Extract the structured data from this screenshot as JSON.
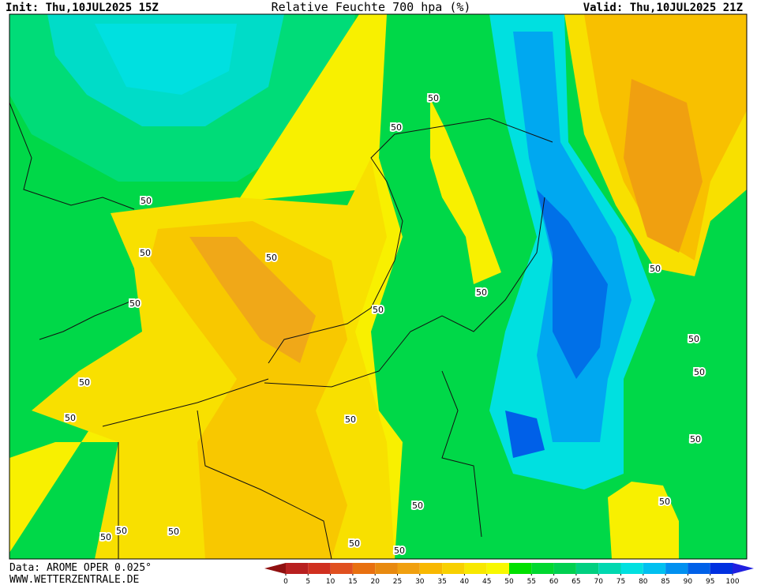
{
  "header": {
    "init": "Init: Thu,10JUL2025 15Z",
    "title": "Relative Feuchte 700 hpa (%)",
    "valid": "Valid: Thu,10JUL2025 21Z"
  },
  "footer": {
    "data_source": "Data: AROME OPER 0.025°",
    "url": "WWW.WETTERZENTRALE.DE"
  },
  "legend": {
    "ticks": [
      0,
      5,
      10,
      15,
      20,
      25,
      30,
      35,
      40,
      45,
      50,
      55,
      60,
      65,
      70,
      75,
      80,
      85,
      90,
      95,
      100
    ],
    "colors": [
      "#901010",
      "#b82020",
      "#d03020",
      "#e05020",
      "#e87010",
      "#e88a10",
      "#f0a010",
      "#f8b800",
      "#f8d000",
      "#f8e800",
      "#f8f800",
      "#00e000",
      "#00d830",
      "#00d050",
      "#00d080",
      "#00d8b0",
      "#00e0e0",
      "#00c0f0",
      "#0090f0",
      "#0060e8",
      "#0030e0",
      "#2020e0"
    ]
  },
  "contour_labels": [
    "50",
    "50",
    "50",
    "50",
    "50",
    "50",
    "50",
    "50",
    "50",
    "50",
    "50",
    "50",
    "50",
    "50",
    "50",
    "50",
    "50",
    "50",
    "50",
    "50",
    "50",
    "50"
  ]
}
